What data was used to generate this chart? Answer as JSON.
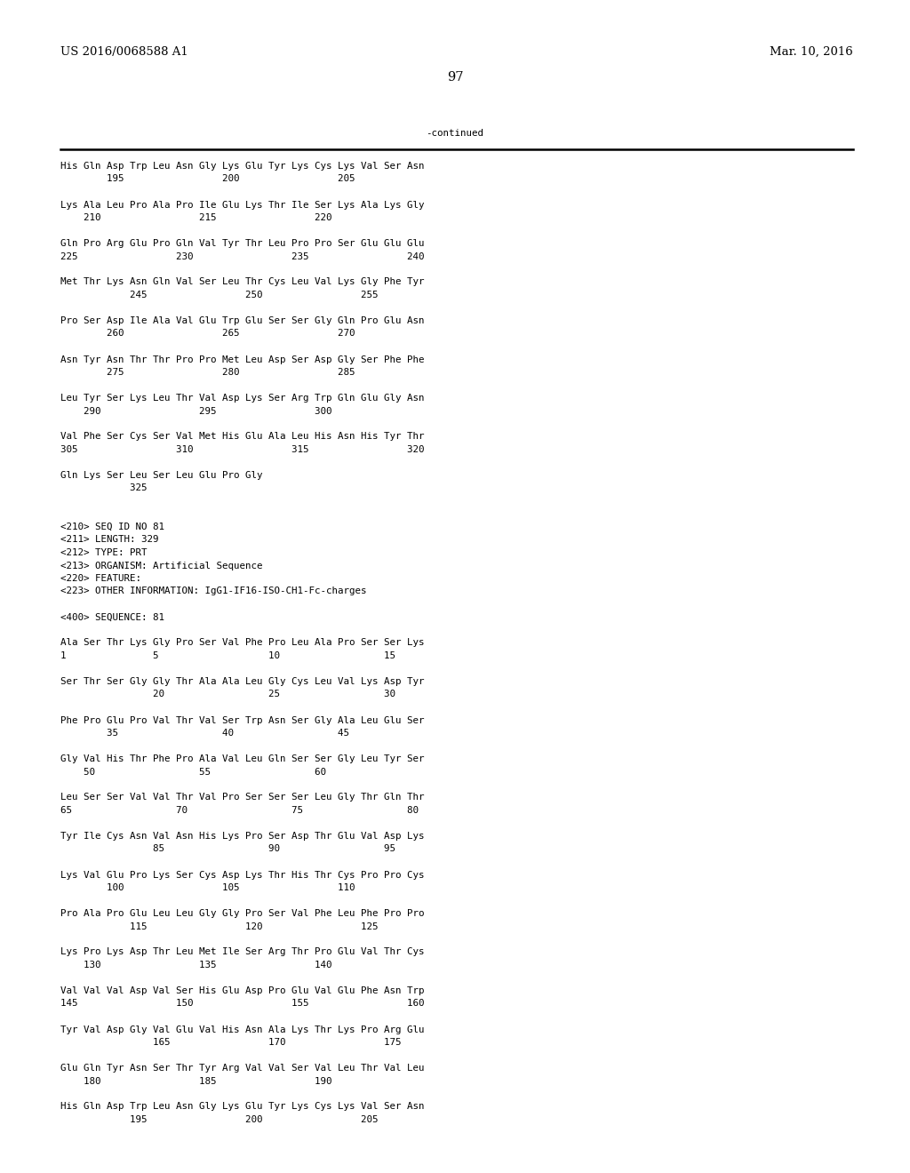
{
  "background_color": "#ffffff",
  "top_left_text": "US 2016/0068588 A1",
  "top_right_text": "Mar. 10, 2016",
  "page_number": "97",
  "continued_text": "-continued",
  "font_size_header": 9.5,
  "font_size_body": 7.8,
  "font_size_page": 10.5,
  "lines": [
    "His Gln Asp Trp Leu Asn Gly Lys Glu Tyr Lys Cys Lys Val Ser Asn",
    "        195                 200                 205",
    "",
    "Lys Ala Leu Pro Ala Pro Ile Glu Lys Thr Ile Ser Lys Ala Lys Gly",
    "    210                 215                 220",
    "",
    "Gln Pro Arg Glu Pro Gln Val Tyr Thr Leu Pro Pro Ser Glu Glu Glu",
    "225                 230                 235                 240",
    "",
    "Met Thr Lys Asn Gln Val Ser Leu Thr Cys Leu Val Lys Gly Phe Tyr",
    "            245                 250                 255",
    "",
    "Pro Ser Asp Ile Ala Val Glu Trp Glu Ser Ser Gly Gln Pro Glu Asn",
    "        260                 265                 270",
    "",
    "Asn Tyr Asn Thr Thr Pro Pro Met Leu Asp Ser Asp Gly Ser Phe Phe",
    "        275                 280                 285",
    "",
    "Leu Tyr Ser Lys Leu Thr Val Asp Lys Ser Arg Trp Gln Glu Gly Asn",
    "    290                 295                 300",
    "",
    "Val Phe Ser Cys Ser Val Met His Glu Ala Leu His Asn His Tyr Thr",
    "305                 310                 315                 320",
    "",
    "Gln Lys Ser Leu Ser Leu Glu Pro Gly",
    "            325",
    "",
    "",
    "<210> SEQ ID NO 81",
    "<211> LENGTH: 329",
    "<212> TYPE: PRT",
    "<213> ORGANISM: Artificial Sequence",
    "<220> FEATURE:",
    "<223> OTHER INFORMATION: IgG1-IF16-ISO-CH1-Fc-charges",
    "",
    "<400> SEQUENCE: 81",
    "",
    "Ala Ser Thr Lys Gly Pro Ser Val Phe Pro Leu Ala Pro Ser Ser Lys",
    "1               5                   10                  15",
    "",
    "Ser Thr Ser Gly Gly Thr Ala Ala Leu Gly Cys Leu Val Lys Asp Tyr",
    "                20                  25                  30",
    "",
    "Phe Pro Glu Pro Val Thr Val Ser Trp Asn Ser Gly Ala Leu Glu Ser",
    "        35                  40                  45",
    "",
    "Gly Val His Thr Phe Pro Ala Val Leu Gln Ser Ser Gly Leu Tyr Ser",
    "    50                  55                  60",
    "",
    "Leu Ser Ser Val Val Thr Val Pro Ser Ser Ser Leu Gly Thr Gln Thr",
    "65                  70                  75                  80",
    "",
    "Tyr Ile Cys Asn Val Asn His Lys Pro Ser Asp Thr Glu Val Asp Lys",
    "                85                  90                  95",
    "",
    "Lys Val Glu Pro Lys Ser Cys Asp Lys Thr His Thr Cys Pro Pro Cys",
    "        100                 105                 110",
    "",
    "Pro Ala Pro Glu Leu Leu Gly Gly Pro Ser Val Phe Leu Phe Pro Pro",
    "            115                 120                 125",
    "",
    "Lys Pro Lys Asp Thr Leu Met Ile Ser Arg Thr Pro Glu Val Thr Cys",
    "    130                 135                 140",
    "",
    "Val Val Val Asp Val Ser His Glu Asp Pro Glu Val Glu Phe Asn Trp",
    "145                 150                 155                 160",
    "",
    "Tyr Val Asp Gly Val Glu Val His Asn Ala Lys Thr Lys Pro Arg Glu",
    "                165                 170                 175",
    "",
    "Glu Gln Tyr Asn Ser Thr Tyr Arg Val Val Ser Val Leu Thr Val Leu",
    "    180                 185                 190",
    "",
    "His Gln Asp Trp Leu Asn Gly Lys Glu Tyr Lys Cys Lys Val Ser Asn",
    "            195                 200                 205"
  ]
}
